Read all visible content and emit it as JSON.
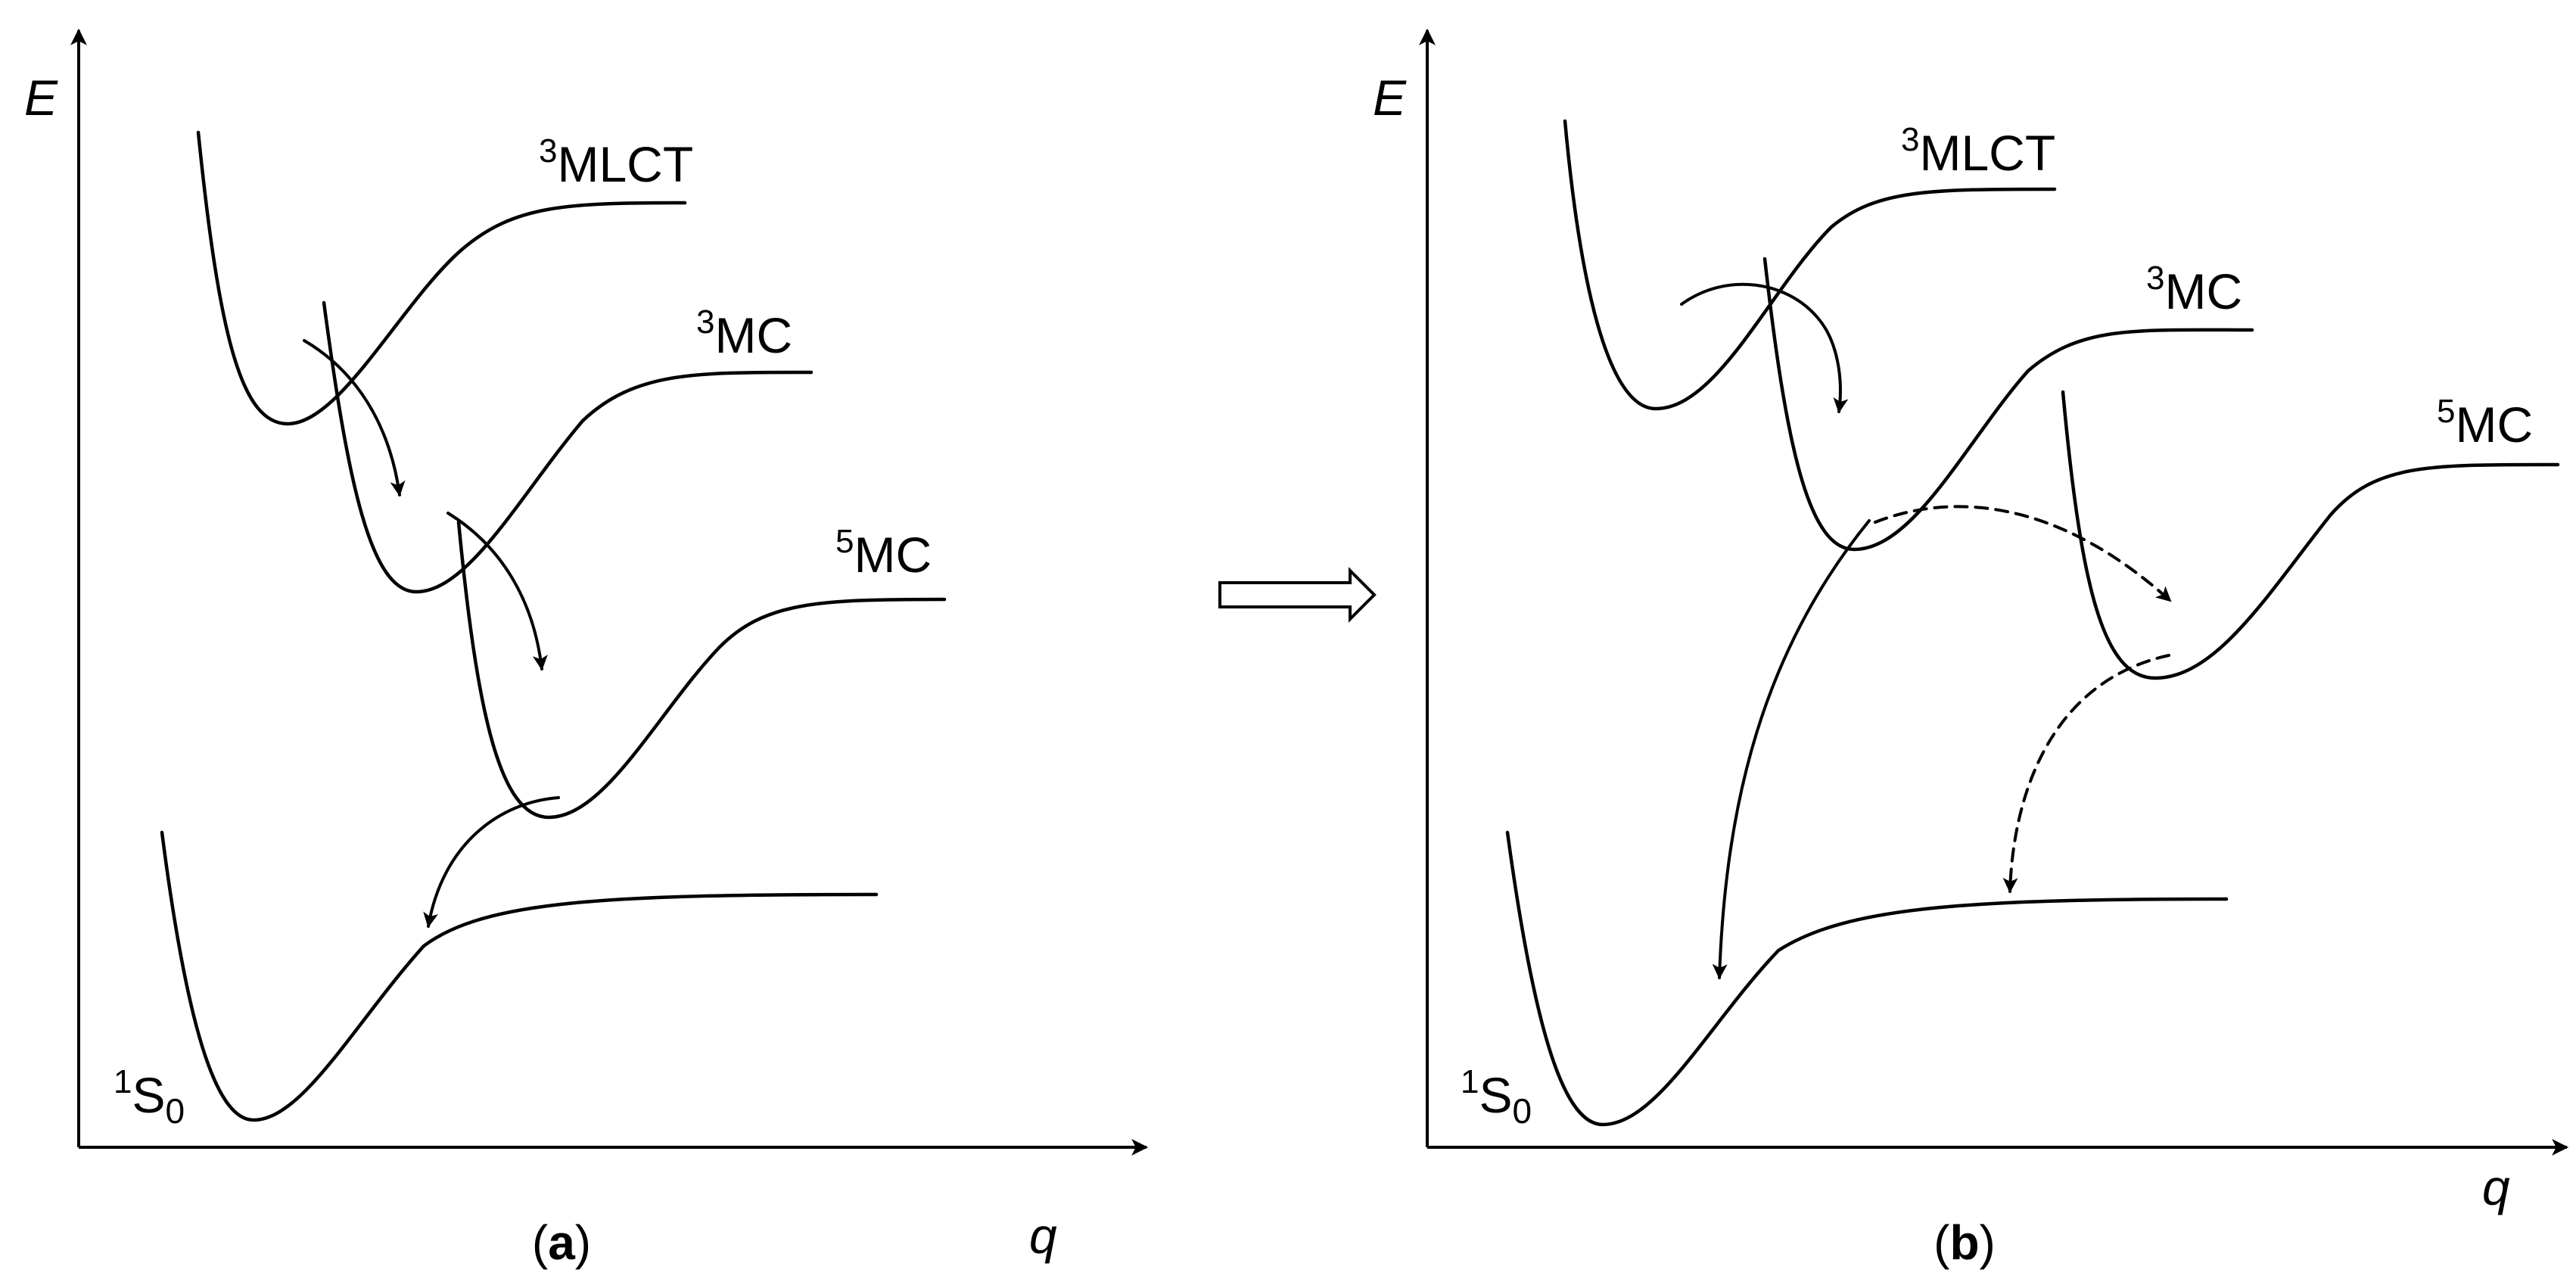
{
  "axes": {
    "y_label": "E",
    "x_label": "q"
  },
  "panels": [
    {
      "caption": "a",
      "states": [
        {
          "sup": "3",
          "name": "MLCT",
          "sub": ""
        },
        {
          "sup": "3",
          "name": "MC",
          "sub": ""
        },
        {
          "sup": "5",
          "name": "MC",
          "sub": ""
        },
        {
          "sup": "1",
          "name": "S",
          "sub": "0"
        }
      ]
    },
    {
      "caption": "b",
      "states": [
        {
          "sup": "3",
          "name": "MLCT",
          "sub": ""
        },
        {
          "sup": "3",
          "name": "MC",
          "sub": ""
        },
        {
          "sup": "5",
          "name": "MC",
          "sub": ""
        },
        {
          "sup": "1",
          "name": "S",
          "sub": "0"
        }
      ]
    }
  ],
  "transitions": {
    "a": [
      {
        "from": "3MLCT",
        "to": "3MC",
        "style": "solid"
      },
      {
        "from": "3MC",
        "to": "5MC",
        "style": "solid"
      },
      {
        "from": "5MC",
        "to": "1S0",
        "style": "solid"
      }
    ],
    "b": [
      {
        "from": "3MLCT",
        "to": "3MC",
        "style": "solid"
      },
      {
        "from": "3MC",
        "to": "1S0",
        "style": "solid"
      },
      {
        "from": "3MC",
        "to": "5MC",
        "style": "dashed"
      },
      {
        "from": "5MC",
        "to": "1S0",
        "style": "dashed"
      }
    ]
  },
  "between_panels": {
    "icon": "hollow-right-arrow-icon"
  }
}
